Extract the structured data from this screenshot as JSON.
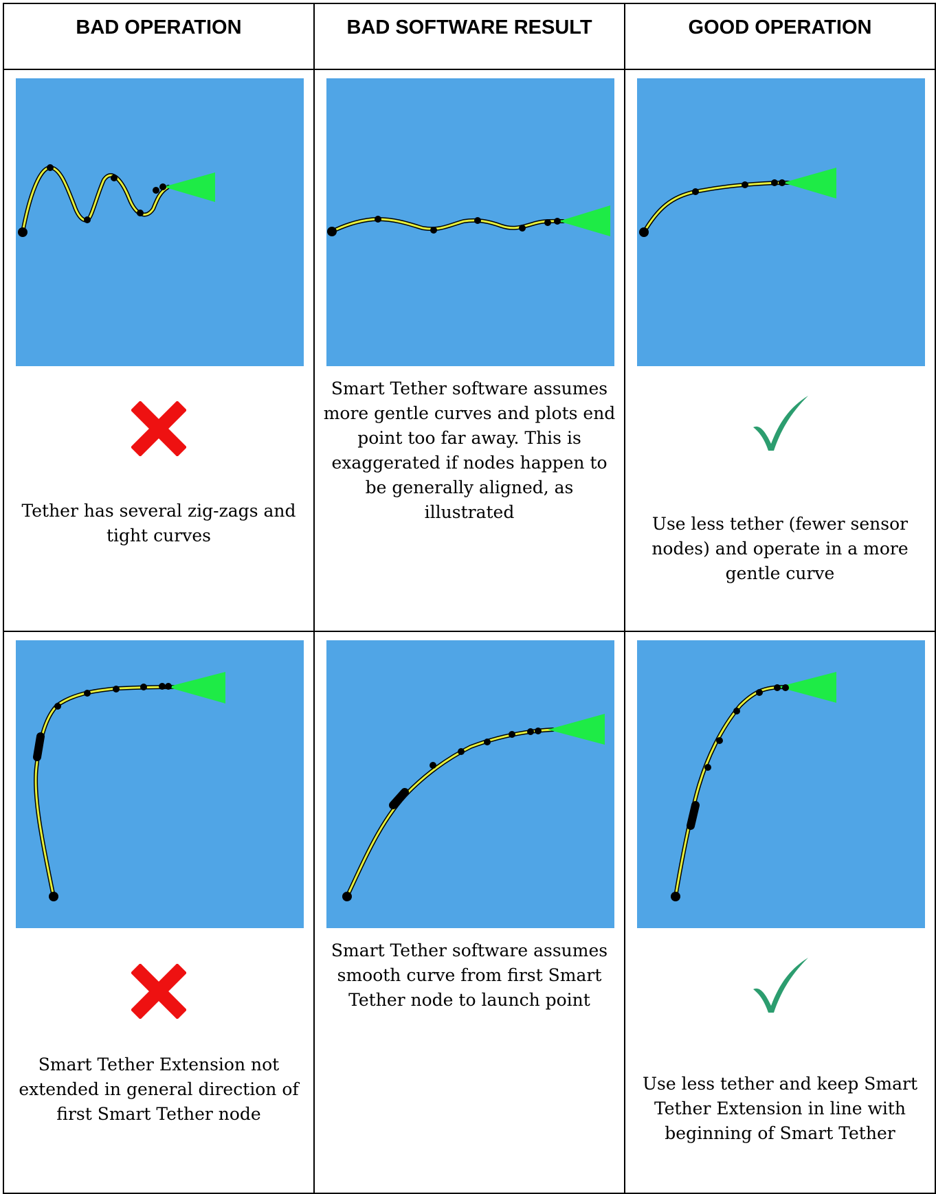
{
  "headers": [
    "BAD OPERATION",
    "BAD SOFTWARE RESULT",
    "GOOD OPERATION"
  ],
  "colors": {
    "water": "#50a5e6",
    "tether": "#e6f03c",
    "vehicle": "#1eeb46",
    "node": "#000000",
    "cross": "#ee1111",
    "check": "#2c9d6f"
  },
  "rows": [
    {
      "cells": [
        {
          "mark": "cross-icon",
          "caption": "Tether has several zig-zags and tight curves"
        },
        {
          "mark": "",
          "caption": "Smart Tether software assumes more gentle curves and plots end point too far away.  This is exaggerated if nodes happen to be generally aligned, as illustrated"
        },
        {
          "mark": "check-icon",
          "caption": "Use less tether (fewer sensor nodes) and operate in a more gentle curve"
        }
      ]
    },
    {
      "cells": [
        {
          "mark": "cross-icon",
          "caption": "Smart Tether Extension not extended in general direction of first Smart Tether node"
        },
        {
          "mark": "",
          "caption": "Smart Tether software assumes smooth curve from first Smart Tether node to launch point"
        },
        {
          "mark": "check-icon",
          "caption": "Use less tether and keep Smart Tether Extension in line with beginning of Smart Tether"
        }
      ]
    }
  ]
}
